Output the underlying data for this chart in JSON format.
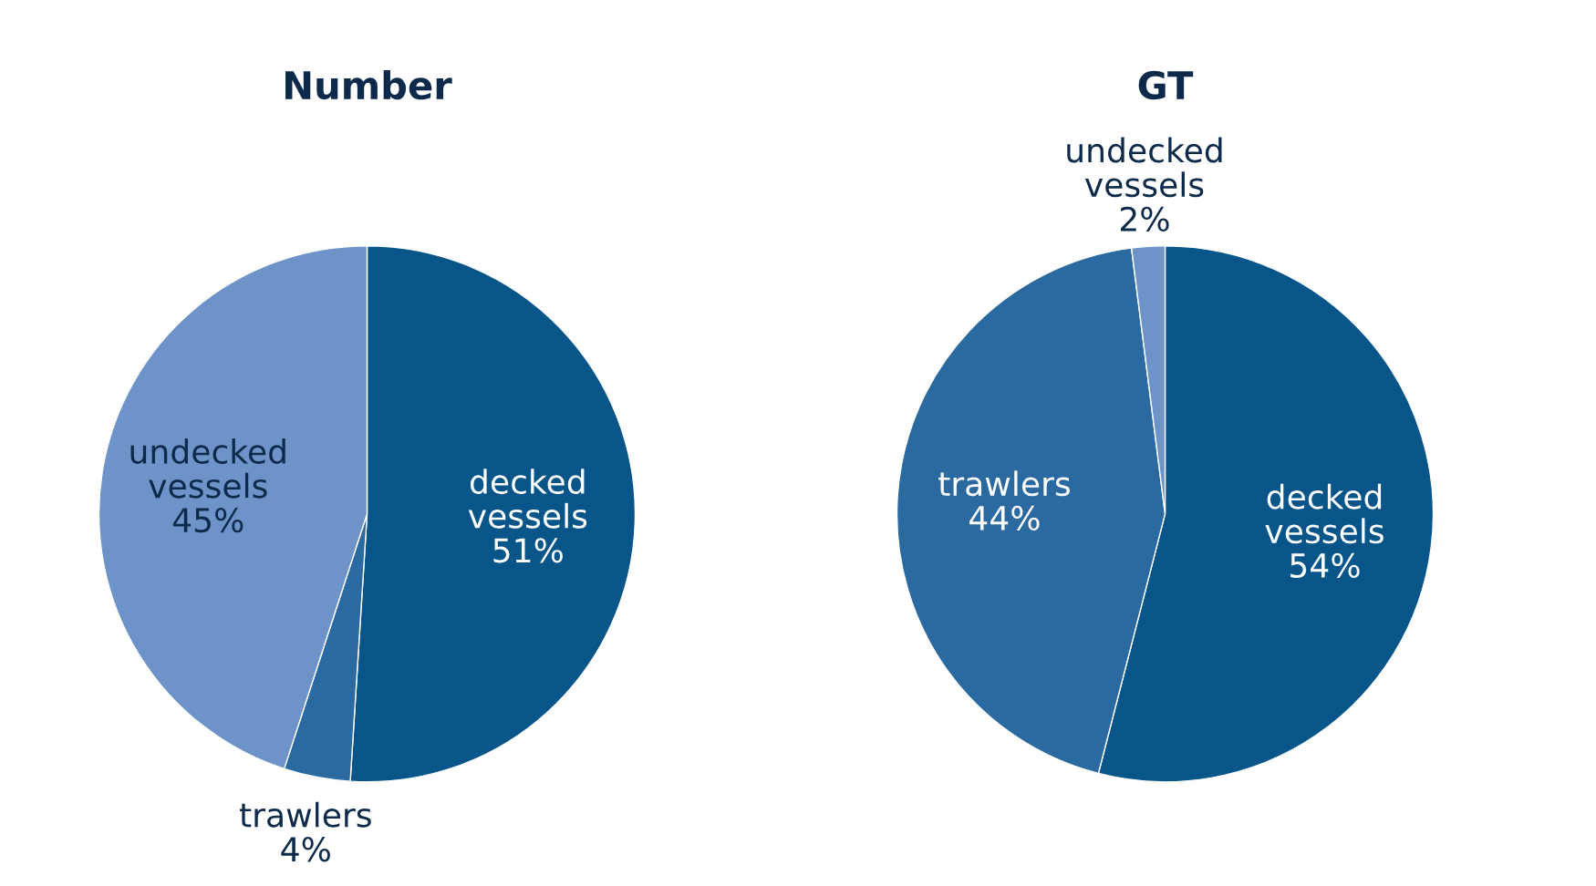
{
  "chart_data": [
    {
      "type": "pie",
      "title": "Number",
      "categories": [
        "decked vessels",
        "trawlers",
        "undecked vessels"
      ],
      "values": [
        51,
        4,
        45
      ],
      "value_labels": [
        "51%",
        "4%",
        "45%"
      ],
      "colors": [
        "#08558a",
        "#2a6aa0",
        "#6d93c8"
      ]
    },
    {
      "type": "pie",
      "title": "GT",
      "categories": [
        "decked vessels",
        "trawlers",
        "undecked vessels"
      ],
      "values": [
        54,
        44,
        2
      ],
      "value_labels": [
        "54%",
        "44%",
        "2%"
      ],
      "colors": [
        "#08558a",
        "#2a6aa0",
        "#6d93c8"
      ]
    }
  ]
}
